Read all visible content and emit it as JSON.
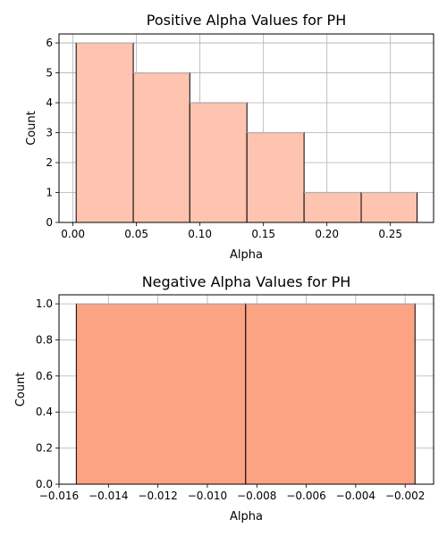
{
  "chart_data": [
    {
      "type": "bar",
      "title": "Positive Alpha Values for PH",
      "xlabel": "Alpha",
      "ylabel": "Count",
      "bins": [
        {
          "x0": 0.0025,
          "x1": 0.0475,
          "count": 6
        },
        {
          "x0": 0.0475,
          "x1": 0.092,
          "count": 5
        },
        {
          "x0": 0.092,
          "x1": 0.137,
          "count": 4
        },
        {
          "x0": 0.137,
          "x1": 0.182,
          "count": 3
        },
        {
          "x0": 0.182,
          "x1": 0.227,
          "count": 1
        },
        {
          "x0": 0.227,
          "x1": 0.271,
          "count": 1
        }
      ],
      "xlim": [
        -0.011,
        0.284
      ],
      "ylim": [
        0,
        6.3
      ],
      "xticks": [
        0.0,
        0.05,
        0.1,
        0.15,
        0.2,
        0.25
      ],
      "xtick_labels": [
        "0.00",
        "0.05",
        "0.10",
        "0.15",
        "0.20",
        "0.25"
      ],
      "yticks": [
        0,
        1,
        2,
        3,
        4,
        5,
        6
      ],
      "ytick_labels": [
        "0",
        "1",
        "2",
        "3",
        "4",
        "5",
        "6"
      ],
      "bar_color": "#fec4b0",
      "grid": true
    },
    {
      "type": "bar",
      "title": "Negative Alpha Values for PH",
      "xlabel": "Alpha",
      "ylabel": "Count",
      "bins": [
        {
          "x0": -0.0153,
          "x1": -0.00845,
          "count": 1
        },
        {
          "x0": -0.00845,
          "x1": -0.0016,
          "count": 1
        }
      ],
      "xlim": [
        -0.016,
        -0.00085
      ],
      "ylim": [
        0,
        1.05
      ],
      "xticks": [
        -0.016,
        -0.014,
        -0.012,
        -0.01,
        -0.008,
        -0.006,
        -0.004,
        -0.002
      ],
      "xtick_labels": [
        "−0.016",
        "−0.014",
        "−0.012",
        "−0.010",
        "−0.008",
        "−0.006",
        "−0.004",
        "−0.002"
      ],
      "yticks": [
        0,
        0.2,
        0.4,
        0.6,
        0.8,
        1.0
      ],
      "ytick_labels": [
        "0.0",
        "0.2",
        "0.4",
        "0.6",
        "0.8",
        "1.0"
      ],
      "bar_color": "#fca384",
      "grid": true
    }
  ]
}
